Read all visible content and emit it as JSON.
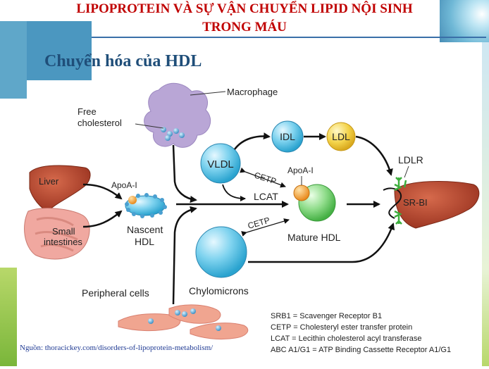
{
  "title_line1": "LIPOPROTEIN VÀ SỰ VẬN CHUYỂN LIPID NỘI SINH",
  "title_line2": "TRONG MÁU",
  "subtitle": "Chuyển hóa của HDL",
  "labels": {
    "macrophage": "Macrophage",
    "free_cholesterol_1": "Free",
    "free_cholesterol_2": "cholesterol",
    "liver": "Liver",
    "small_intestines_1": "Small",
    "small_intestines_2": "intestines",
    "apoa1_nascent": "ApoA-I",
    "nascent_hdl_1": "Nascent",
    "nascent_hdl_2": "HDL",
    "vldl": "VLDL",
    "idl": "IDL",
    "ldl": "LDL",
    "cetp_top": "CETP",
    "apoa1_mature": "ApoA-I",
    "lcat": "LCAT",
    "cetp_bottom": "CETP",
    "mature_hdl": "Mature HDL",
    "ldlr": "LDLR",
    "srbi": "SR-BI",
    "peripheral_cells": "Peripheral cells",
    "chylomicrons": "Chylomicrons"
  },
  "legend": [
    "SRB1 = Scavenger Receptor B1",
    "CETP = Cholesteryl ester transfer protein",
    "LCAT = Lecithin cholesterol acyl transferase",
    "ABC A1/G1 = ATP Binding Cassette Receptor A1/G1"
  ],
  "source": "Nguồn: thoracickey.com/disorders-of-lipoprotein-metabolism/",
  "colors": {
    "title": "#c00000",
    "subtitle": "#1f4e79",
    "vldl": "#5bc4e6",
    "idl": "#5bc4e6",
    "ldl": "#f3d34a",
    "mature_hdl": "#7ed67a",
    "apoa1": "#f0a030",
    "liver": "#b5452b",
    "macrophage": "#b9a6d6",
    "peripheral": "#f0a590"
  }
}
